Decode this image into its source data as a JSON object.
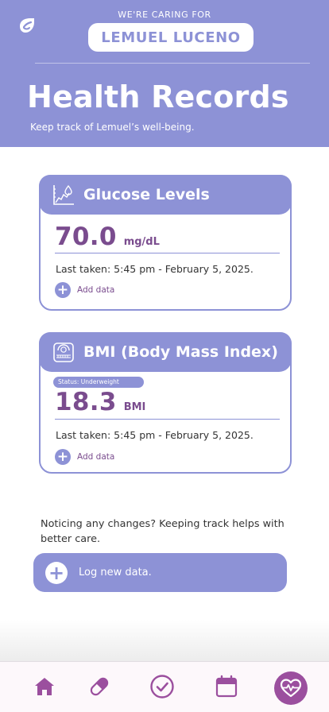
{
  "header": {
    "caring_label": "WE'RE CARING FOR",
    "patient_name": "LEMUEL LUCENO",
    "title": "Health Records",
    "subtitle": "Keep track of Lemuel’s well-being.",
    "logo_icon": "leaf-logo-icon"
  },
  "cards": {
    "glucose": {
      "title": "Glucose Levels",
      "icon": "glucose-chart-icon",
      "value": "70.0",
      "unit": "mg/dL",
      "last_taken": "Last taken: 5:45 pm - February  5, 2025.",
      "add_label": "Add data"
    },
    "bmi": {
      "title": "BMI (Body Mass Index)",
      "icon": "scale-icon",
      "status": "Status: Underweight",
      "value": "18.3",
      "unit": "BMI",
      "last_taken": "Last taken: 5:45 pm - February  5, 2025.",
      "add_label": "Add data"
    }
  },
  "hint": "Noticing any changes? Keeping track helps with better care.",
  "log_button": {
    "label": "Log new data."
  },
  "nav": {
    "items": [
      "home-icon",
      "pill-icon",
      "check-circle-icon",
      "calendar-icon",
      "heart-pulse-icon"
    ],
    "active": "heart-pulse-icon"
  },
  "colors": {
    "accent": "#8d92d6",
    "value_text": "#7a4c8e",
    "nav_icon": "#9b4f9e",
    "background": "#ffffff"
  }
}
